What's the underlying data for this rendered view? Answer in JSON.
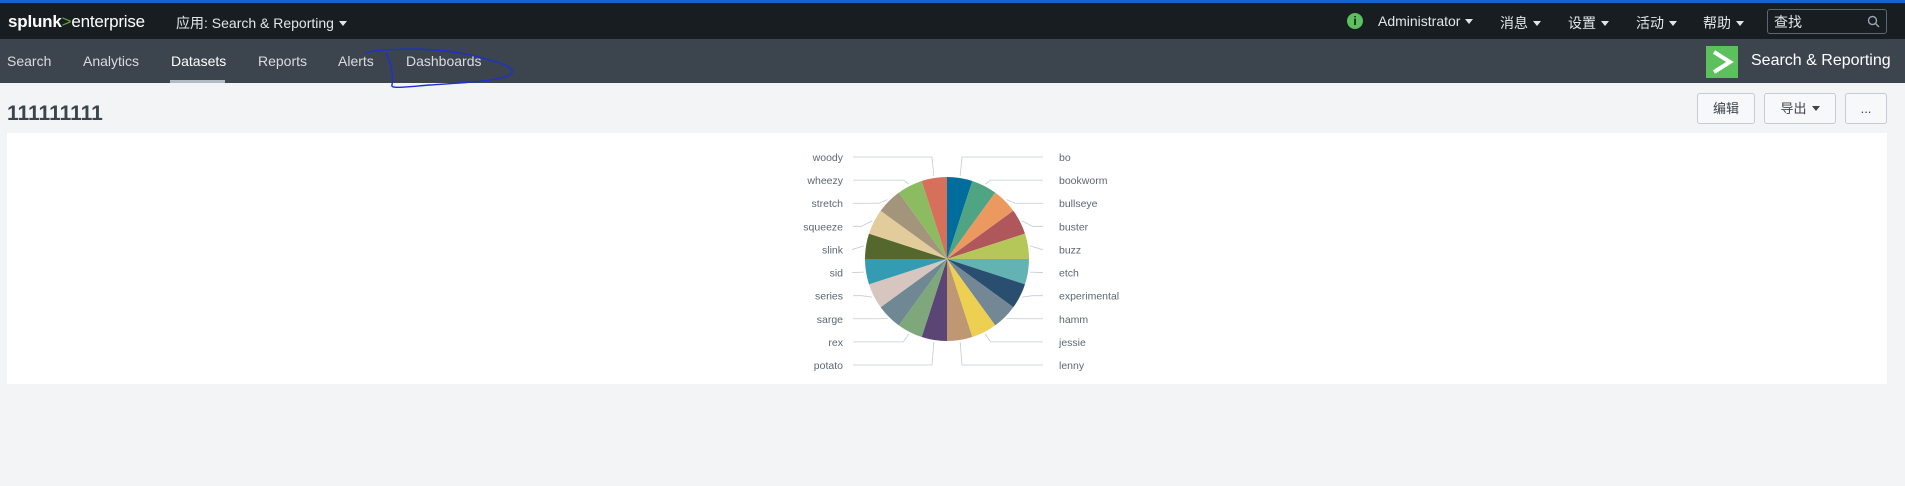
{
  "header": {
    "logo_main": "splunk",
    "logo_sep": ">",
    "logo_product": "enterprise",
    "app_menu": "应用: Search & Reporting",
    "right_menus": [
      {
        "id": "user",
        "label": "Administrator"
      },
      {
        "id": "messages",
        "label": "消息"
      },
      {
        "id": "settings",
        "label": "设置"
      },
      {
        "id": "activity",
        "label": "活动"
      },
      {
        "id": "help",
        "label": "帮助"
      }
    ],
    "search_placeholder": "查找",
    "info_glyph": "i"
  },
  "nav": {
    "tabs": [
      {
        "label": "Search",
        "active": false
      },
      {
        "label": "Analytics",
        "active": false
      },
      {
        "label": "Datasets",
        "active": true
      },
      {
        "label": "Reports",
        "active": false
      },
      {
        "label": "Alerts",
        "active": false
      },
      {
        "label": "Dashboards",
        "active": false
      }
    ],
    "app_title": "Search & Reporting",
    "app_badge_color": "#5cc05c"
  },
  "page": {
    "title": "111111111",
    "buttons": {
      "edit": "编辑",
      "export": "导出",
      "more": "..."
    }
  },
  "chart_data": {
    "type": "pie",
    "slices": [
      {
        "label": "bo",
        "value": 1,
        "color": "#006d9c"
      },
      {
        "label": "bookworm",
        "value": 1,
        "color": "#4fa484"
      },
      {
        "label": "bullseye",
        "value": 1,
        "color": "#ec9960"
      },
      {
        "label": "buster",
        "value": 1,
        "color": "#af575a"
      },
      {
        "label": "buzz",
        "value": 1,
        "color": "#b6c75a"
      },
      {
        "label": "etch",
        "value": 1,
        "color": "#62b3b2"
      },
      {
        "label": "experimental",
        "value": 1,
        "color": "#294e70"
      },
      {
        "label": "hamm",
        "value": 1,
        "color": "#738795"
      },
      {
        "label": "jessie",
        "value": 1,
        "color": "#edd051"
      },
      {
        "label": "lenny",
        "value": 1,
        "color": "#bd9872"
      },
      {
        "label": "potato",
        "value": 1,
        "color": "#5a4575"
      },
      {
        "label": "rex",
        "value": 1,
        "color": "#7ea77b"
      },
      {
        "label": "sarge",
        "value": 1,
        "color": "#708794"
      },
      {
        "label": "series",
        "value": 1,
        "color": "#d7c6bf"
      },
      {
        "label": "sid",
        "value": 1,
        "color": "#339bb2"
      },
      {
        "label": "slink",
        "value": 1,
        "color": "#55672d"
      },
      {
        "label": "squeeze",
        "value": 1,
        "color": "#e3cc9c"
      },
      {
        "label": "stretch",
        "value": 1,
        "color": "#a3947c"
      },
      {
        "label": "wheezy",
        "value": 1,
        "color": "#8cbb62"
      },
      {
        "label": "woody",
        "value": 1,
        "color": "#d6705a"
      }
    ]
  }
}
